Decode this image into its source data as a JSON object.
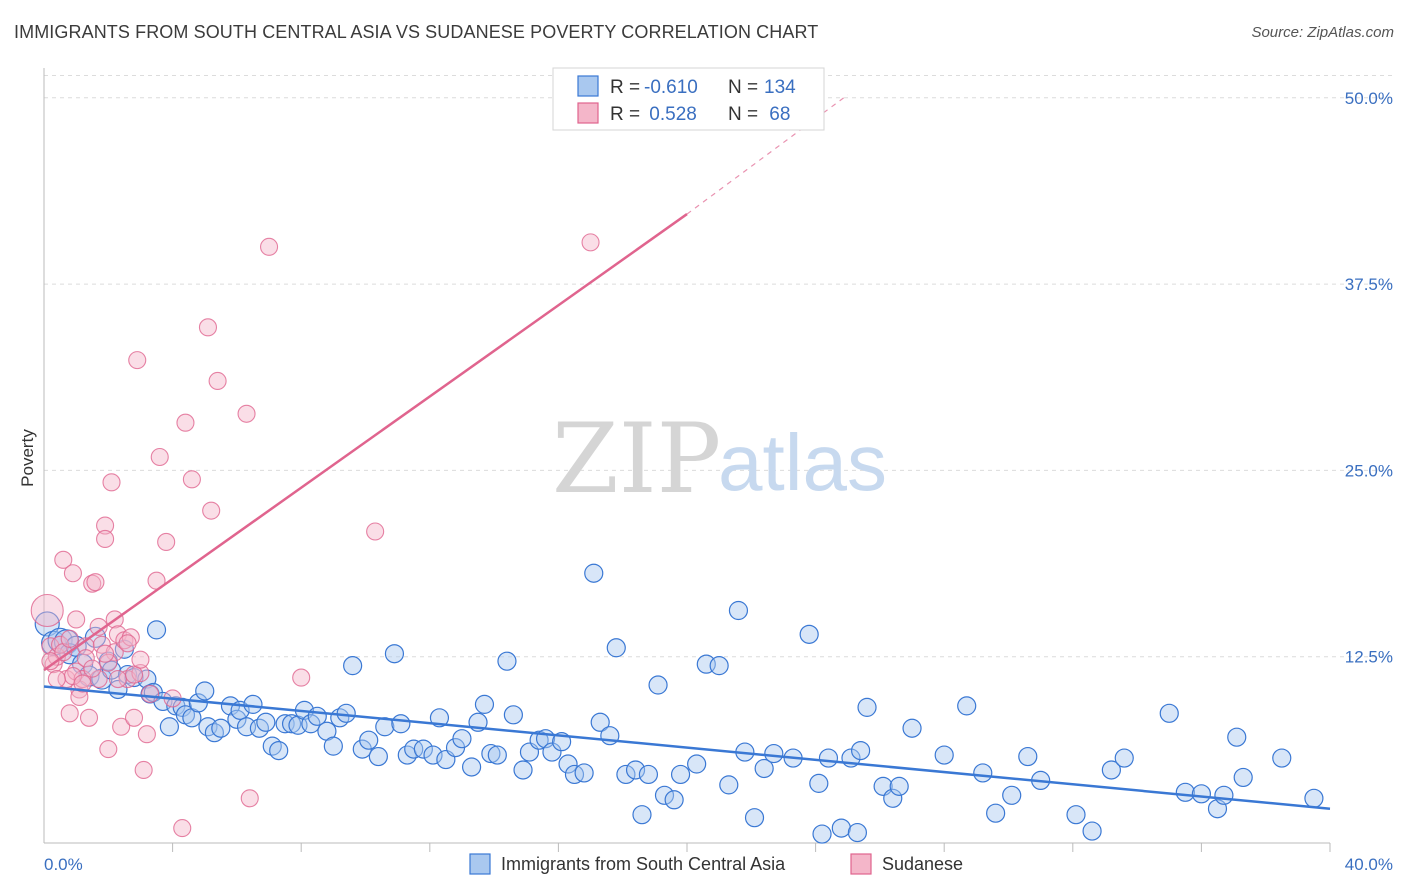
{
  "title": "IMMIGRANTS FROM SOUTH CENTRAL ASIA VS SUDANESE POVERTY CORRELATION CHART",
  "source": "Source: ZipAtlas.com",
  "watermark": {
    "zip": "ZIP",
    "atlas": "atlas"
  },
  "colors": {
    "blue": "#3a78d4",
    "blue_fill": "#a9c8ef",
    "pink": "#e0648e",
    "pink_fill": "#f4b6c9",
    "tick": "#3a6fc0"
  },
  "legend": {
    "rows": [
      {
        "r_label": "R =",
        "r_value": "-0.610",
        "n_label": "N =",
        "n_value": "134"
      },
      {
        "r_label": "R =",
        "r_value": " 0.528",
        "n_label": "N =",
        "n_value": " 68"
      }
    ]
  },
  "bottom_legend": [
    "Immigrants from South Central Asia",
    "Sudanese"
  ],
  "chart_data": {
    "type": "scatter",
    "xlabel": "",
    "ylabel": "Poverty",
    "xlim": [
      0,
      40
    ],
    "ylim": [
      0,
      52
    ],
    "x_tick_labels": [
      "0.0%",
      "40.0%"
    ],
    "y_ticks": [
      12.5,
      25.0,
      37.5,
      50.0
    ],
    "y_tick_labels": [
      "12.5%",
      "25.0%",
      "37.5%",
      "50.0%"
    ],
    "grid": true,
    "legend_position": "top-center",
    "series": [
      {
        "name": "Immigrants from South Central Asia",
        "trend": {
          "x0": 0,
          "y0": 10.5,
          "x1": 40,
          "y1": 2.3
        },
        "points": [
          [
            0.1,
            14.7
          ],
          [
            0.3,
            13.4
          ],
          [
            0.5,
            13.6
          ],
          [
            0.7,
            13.5
          ],
          [
            0.8,
            12.7
          ],
          [
            1.0,
            13.2
          ],
          [
            1.2,
            12.0
          ],
          [
            1.4,
            11.2
          ],
          [
            1.6,
            13.8
          ],
          [
            1.8,
            11.0
          ],
          [
            2.0,
            12.2
          ],
          [
            2.1,
            11.6
          ],
          [
            2.3,
            10.3
          ],
          [
            2.5,
            13.0
          ],
          [
            2.6,
            11.3
          ],
          [
            2.8,
            11.1
          ],
          [
            3.2,
            11.0
          ],
          [
            3.3,
            10.0
          ],
          [
            3.4,
            10.1
          ],
          [
            3.5,
            14.3
          ],
          [
            3.7,
            9.5
          ],
          [
            3.9,
            7.8
          ],
          [
            4.1,
            9.2
          ],
          [
            4.3,
            9.1
          ],
          [
            4.4,
            8.6
          ],
          [
            4.6,
            8.4
          ],
          [
            4.8,
            9.4
          ],
          [
            5.0,
            10.2
          ],
          [
            5.1,
            7.8
          ],
          [
            5.3,
            7.4
          ],
          [
            5.5,
            7.7
          ],
          [
            5.8,
            9.2
          ],
          [
            6.0,
            8.3
          ],
          [
            6.1,
            8.9
          ],
          [
            6.3,
            7.8
          ],
          [
            6.5,
            9.3
          ],
          [
            6.7,
            7.7
          ],
          [
            6.9,
            8.1
          ],
          [
            7.1,
            6.5
          ],
          [
            7.3,
            6.2
          ],
          [
            7.5,
            8.0
          ],
          [
            7.7,
            8.0
          ],
          [
            7.9,
            7.9
          ],
          [
            8.1,
            8.9
          ],
          [
            8.3,
            8.0
          ],
          [
            8.5,
            8.5
          ],
          [
            8.8,
            7.5
          ],
          [
            9.0,
            6.5
          ],
          [
            9.2,
            8.4
          ],
          [
            9.4,
            8.7
          ],
          [
            9.6,
            11.9
          ],
          [
            9.9,
            6.3
          ],
          [
            10.1,
            6.9
          ],
          [
            10.4,
            5.8
          ],
          [
            10.6,
            7.8
          ],
          [
            10.9,
            12.7
          ],
          [
            11.1,
            8.0
          ],
          [
            11.3,
            5.9
          ],
          [
            11.5,
            6.3
          ],
          [
            11.8,
            6.3
          ],
          [
            12.1,
            5.9
          ],
          [
            12.3,
            8.4
          ],
          [
            12.5,
            5.6
          ],
          [
            12.8,
            6.4
          ],
          [
            13.0,
            7.0
          ],
          [
            13.3,
            5.1
          ],
          [
            13.5,
            8.1
          ],
          [
            13.7,
            9.3
          ],
          [
            13.9,
            6.0
          ],
          [
            14.1,
            5.9
          ],
          [
            14.4,
            12.2
          ],
          [
            14.6,
            8.6
          ],
          [
            14.9,
            4.9
          ],
          [
            15.1,
            6.1
          ],
          [
            15.4,
            6.9
          ],
          [
            15.6,
            7.0
          ],
          [
            15.8,
            6.1
          ],
          [
            16.1,
            6.8
          ],
          [
            16.3,
            5.3
          ],
          [
            16.5,
            4.6
          ],
          [
            16.8,
            4.7
          ],
          [
            17.1,
            18.1
          ],
          [
            17.3,
            8.1
          ],
          [
            17.6,
            7.2
          ],
          [
            17.8,
            13.1
          ],
          [
            18.1,
            4.6
          ],
          [
            18.4,
            4.9
          ],
          [
            18.6,
            1.9
          ],
          [
            18.8,
            4.6
          ],
          [
            19.1,
            10.6
          ],
          [
            19.3,
            3.2
          ],
          [
            19.6,
            2.9
          ],
          [
            19.8,
            4.6
          ],
          [
            20.3,
            5.3
          ],
          [
            20.6,
            12.0
          ],
          [
            21.0,
            11.9
          ],
          [
            21.3,
            3.9
          ],
          [
            21.6,
            15.6
          ],
          [
            21.8,
            6.1
          ],
          [
            22.1,
            1.7
          ],
          [
            22.4,
            5.0
          ],
          [
            22.7,
            6.0
          ],
          [
            23.3,
            5.7
          ],
          [
            23.8,
            14.0
          ],
          [
            24.1,
            4.0
          ],
          [
            24.4,
            5.7
          ],
          [
            24.8,
            1.0
          ],
          [
            25.1,
            5.7
          ],
          [
            25.4,
            6.2
          ],
          [
            25.6,
            9.1
          ],
          [
            26.1,
            3.8
          ],
          [
            26.4,
            3.0
          ],
          [
            26.6,
            3.8
          ],
          [
            27.0,
            7.7
          ],
          [
            28.0,
            5.9
          ],
          [
            28.7,
            9.2
          ],
          [
            29.2,
            4.7
          ],
          [
            29.6,
            2.0
          ],
          [
            30.1,
            3.2
          ],
          [
            30.6,
            5.8
          ],
          [
            31.0,
            4.2
          ],
          [
            32.1,
            1.9
          ],
          [
            32.6,
            0.8
          ],
          [
            33.2,
            4.9
          ],
          [
            33.6,
            5.7
          ],
          [
            35.0,
            8.7
          ],
          [
            35.5,
            3.4
          ],
          [
            36.0,
            3.3
          ],
          [
            36.5,
            2.3
          ],
          [
            36.7,
            3.2
          ],
          [
            37.1,
            7.1
          ],
          [
            37.3,
            4.4
          ],
          [
            38.5,
            5.7
          ],
          [
            39.5,
            3.0
          ],
          [
            24.2,
            0.6
          ],
          [
            25.3,
            0.7
          ]
        ]
      },
      {
        "name": "Sudanese",
        "trend": {
          "x0": 0,
          "y0": 11.6,
          "x1": 20.0,
          "y1": 42.2,
          "dash_x1": 25.0,
          "dash_y1": 50.2
        },
        "points": [
          [
            0.1,
            15.6
          ],
          [
            0.2,
            13.2
          ],
          [
            0.3,
            12.0
          ],
          [
            0.4,
            12.5
          ],
          [
            0.5,
            13.3
          ],
          [
            0.6,
            19.0
          ],
          [
            0.7,
            11.0
          ],
          [
            0.8,
            8.7
          ],
          [
            0.9,
            18.1
          ],
          [
            1.0,
            15.0
          ],
          [
            1.0,
            11.5
          ],
          [
            1.1,
            10.3
          ],
          [
            1.2,
            11.0
          ],
          [
            1.3,
            13.2
          ],
          [
            1.4,
            8.4
          ],
          [
            1.5,
            17.4
          ],
          [
            1.6,
            17.5
          ],
          [
            1.7,
            11.0
          ],
          [
            1.8,
            13.3
          ],
          [
            1.9,
            21.3
          ],
          [
            1.9,
            20.4
          ],
          [
            2.0,
            6.3
          ],
          [
            2.1,
            24.2
          ],
          [
            2.2,
            12.8
          ],
          [
            2.2,
            15.0
          ],
          [
            2.3,
            14.0
          ],
          [
            2.4,
            7.8
          ],
          [
            2.5,
            13.6
          ],
          [
            2.6,
            11.0
          ],
          [
            2.7,
            13.8
          ],
          [
            2.8,
            8.4
          ],
          [
            2.9,
            32.4
          ],
          [
            3.0,
            11.4
          ],
          [
            3.1,
            4.9
          ],
          [
            3.2,
            7.3
          ],
          [
            3.3,
            10.0
          ],
          [
            3.5,
            17.6
          ],
          [
            3.6,
            25.9
          ],
          [
            3.8,
            20.2
          ],
          [
            4.0,
            9.7
          ],
          [
            4.3,
            1.0
          ],
          [
            4.4,
            28.2
          ],
          [
            4.6,
            24.4
          ],
          [
            5.1,
            34.6
          ],
          [
            5.2,
            22.3
          ],
          [
            5.4,
            31.0
          ],
          [
            6.3,
            28.8
          ],
          [
            6.4,
            3.0
          ],
          [
            7.0,
            40.0
          ],
          [
            8.0,
            11.1
          ],
          [
            10.3,
            20.9
          ],
          [
            17.0,
            40.3
          ],
          [
            1.3,
            12.4
          ],
          [
            0.9,
            11.2
          ],
          [
            2.0,
            12.1
          ],
          [
            0.4,
            11.0
          ],
          [
            1.7,
            14.5
          ],
          [
            1.1,
            9.8
          ],
          [
            2.6,
            13.4
          ],
          [
            0.6,
            12.8
          ],
          [
            0.2,
            12.2
          ],
          [
            0.8,
            13.7
          ],
          [
            1.5,
            11.7
          ],
          [
            2.3,
            11.0
          ],
          [
            1.9,
            12.7
          ],
          [
            1.2,
            10.7
          ],
          [
            2.8,
            11.3
          ],
          [
            3.0,
            12.3
          ]
        ]
      }
    ]
  }
}
